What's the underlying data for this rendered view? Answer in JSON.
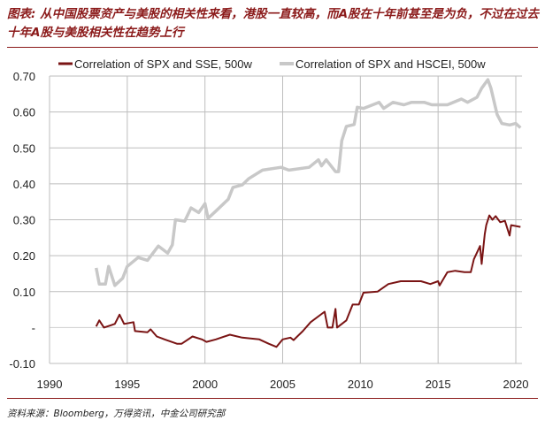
{
  "title": "图表: 从中国股票资产与美股的相关性来看，港股一直较高，而A股在十年前甚至是为负，不过在过去十年A股与美股相关性在趋势上行",
  "source": "资料来源：Bloomberg，万得资讯，中金公司研究部",
  "chart_data": {
    "type": "line",
    "title": "",
    "xlabel": "",
    "ylabel": "",
    "xlim": [
      1990,
      2020.4
    ],
    "ylim": [
      -0.1,
      0.7
    ],
    "grid": true,
    "legend_position": "top",
    "x_ticks": [
      "1990",
      "1995",
      "2000",
      "2005",
      "2010",
      "2015",
      "2020"
    ],
    "x_tick_values": [
      1990,
      1995,
      2000,
      2005,
      2010,
      2015,
      2020
    ],
    "y_ticks": [
      "0.70",
      "0.60",
      "0.50",
      "0.40",
      "0.30",
      "0.20",
      "0.10",
      "-",
      "-0.10"
    ],
    "y_tick_values": [
      0.7,
      0.6,
      0.5,
      0.4,
      0.3,
      0.2,
      0.1,
      0,
      -0.1
    ],
    "series": [
      {
        "name": "Correlation of SPX and SSE, 500w",
        "color": "#7a1414",
        "x": [
          1993.0,
          1993.2,
          1993.5,
          1994.2,
          1994.5,
          1994.8,
          1995.4,
          1995.5,
          1996.3,
          1996.5,
          1996.9,
          1997.4,
          1998.2,
          1998.5,
          1999.2,
          1999.8,
          2000.1,
          2000.7,
          2001.6,
          2002.4,
          2003.5,
          2004.1,
          2004.6,
          2005.0,
          2005.5,
          2005.7,
          2006.3,
          2006.8,
          2007.7,
          2007.9,
          2008.2,
          2008.4,
          2008.5,
          2009.1,
          2009.5,
          2009.9,
          2010.2,
          2011.1,
          2011.8,
          2012.6,
          2013.9,
          2014.5,
          2015.0,
          2015.1,
          2015.6,
          2016.1,
          2016.7,
          2017.1,
          2017.3,
          2017.7,
          2017.8,
          2018.0,
          2018.1,
          2018.3,
          2018.5,
          2018.7,
          2019.0,
          2019.3,
          2019.6,
          2019.7,
          2020.3
        ],
        "y": [
          0.003,
          0.02,
          0.0,
          0.01,
          0.036,
          0.01,
          0.015,
          -0.01,
          -0.013,
          -0.005,
          -0.025,
          -0.033,
          -0.045,
          -0.045,
          -0.025,
          -0.033,
          -0.04,
          -0.033,
          -0.02,
          -0.028,
          -0.033,
          -0.045,
          -0.054,
          -0.033,
          -0.028,
          -0.035,
          -0.01,
          0.015,
          0.044,
          0.0,
          0.0,
          0.052,
          0.0,
          0.02,
          0.064,
          0.064,
          0.097,
          0.1,
          0.121,
          0.129,
          0.129,
          0.121,
          0.129,
          0.117,
          0.154,
          0.158,
          0.154,
          0.154,
          0.19,
          0.227,
          0.177,
          0.26,
          0.285,
          0.312,
          0.3,
          0.31,
          0.293,
          0.297,
          0.256,
          0.285,
          0.28
        ]
      },
      {
        "name": "Correlation of SPX and HSCEI, 500w",
        "color": "#c8c8c8",
        "x": [
          1993.0,
          1993.2,
          1993.6,
          1993.8,
          1994.2,
          1994.7,
          1995.0,
          1995.7,
          1996.3,
          1997.0,
          1997.6,
          1997.9,
          1998.1,
          1998.7,
          1999.1,
          1999.6,
          2000.0,
          2000.2,
          2000.7,
          2001.5,
          2001.8,
          2002.4,
          2002.8,
          2003.7,
          2004.9,
          2005.4,
          2006.7,
          2007.3,
          2007.5,
          2007.8,
          2008.4,
          2008.6,
          2008.8,
          2009.1,
          2009.6,
          2009.8,
          2010.2,
          2011.2,
          2011.5,
          2012.1,
          2012.8,
          2013.3,
          2014.1,
          2014.6,
          2015.6,
          2016.5,
          2016.9,
          2017.5,
          2017.8,
          2018.2,
          2018.4,
          2018.8,
          2019.1,
          2019.6,
          2020.0,
          2020.3
        ],
        "y": [
          0.166,
          0.121,
          0.121,
          0.17,
          0.117,
          0.137,
          0.17,
          0.195,
          0.187,
          0.227,
          0.207,
          0.23,
          0.3,
          0.296,
          0.333,
          0.32,
          0.345,
          0.304,
          0.324,
          0.357,
          0.39,
          0.397,
          0.414,
          0.438,
          0.446,
          0.438,
          0.446,
          0.467,
          0.45,
          0.467,
          0.434,
          0.434,
          0.52,
          0.56,
          0.565,
          0.613,
          0.61,
          0.627,
          0.61,
          0.627,
          0.62,
          0.627,
          0.627,
          0.62,
          0.62,
          0.636,
          0.627,
          0.641,
          0.666,
          0.69,
          0.666,
          0.593,
          0.568,
          0.564,
          0.568,
          0.556
        ]
      }
    ]
  }
}
